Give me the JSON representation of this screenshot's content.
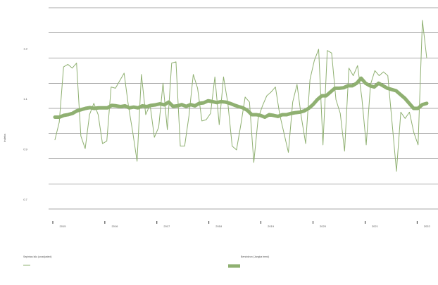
{
  "chart_data": {
    "type": "line",
    "title": "",
    "xlabel": "",
    "ylabel": "Indeks",
    "grid": true,
    "legend_position": "bottom",
    "footer": "",
    "x_tick_labels": [
      "2015",
      "2016",
      "2017",
      "2018",
      "2019",
      "2020",
      "2021",
      "2022"
    ],
    "y_tick_labels": [
      "0.7",
      "0.9",
      "1.1",
      "1.3"
    ],
    "ylim": [
      0.65,
      1.45
    ],
    "colors": {
      "series_1": "#8fb071",
      "series_2": "#8fb071",
      "grid": "#555555"
    },
    "series": [
      {
        "name": "Sepintas lalu (unadjusted)",
        "style": "thin",
        "values": [
          0.925,
          0.995,
          1.215,
          1.225,
          1.21,
          1.23,
          0.94,
          0.89,
          1.025,
          1.07,
          1.025,
          0.91,
          0.92,
          1.135,
          1.13,
          1.16,
          1.19,
          1.06,
          0.955,
          0.84,
          1.185,
          1.025,
          1.065,
          0.935,
          0.975,
          1.15,
          0.965,
          1.23,
          1.235,
          0.9,
          0.9,
          1.02,
          1.185,
          1.13,
          1.0,
          1.005,
          1.03,
          1.175,
          0.985,
          1.175,
          1.07,
          0.9,
          0.885,
          0.985,
          1.095,
          1.075,
          0.835,
          1.01,
          1.06,
          1.1,
          1.115,
          1.135,
          1.025,
          0.95,
          0.875,
          1.075,
          1.145,
          1.015,
          0.91,
          1.165,
          1.24,
          1.285,
          0.905,
          1.28,
          1.27,
          1.085,
          1.03,
          0.88,
          1.21,
          1.18,
          1.22,
          1.09,
          0.905,
          1.145,
          1.2,
          1.18,
          1.195,
          1.18,
          0.99,
          0.8,
          1.035,
          1.01,
          1.035,
          0.955,
          0.905,
          1.4,
          1.25
        ]
      },
      {
        "name": "Bersinkron (Jangka trend)",
        "style": "thick",
        "values": [
          1.015,
          1.015,
          1.022,
          1.025,
          1.03,
          1.04,
          1.045,
          1.05,
          1.053,
          1.05,
          1.052,
          1.052,
          1.052,
          1.062,
          1.06,
          1.057,
          1.06,
          1.052,
          1.055,
          1.052,
          1.06,
          1.057,
          1.062,
          1.064,
          1.068,
          1.064,
          1.075,
          1.058,
          1.06,
          1.065,
          1.058,
          1.065,
          1.06,
          1.07,
          1.072,
          1.08,
          1.077,
          1.073,
          1.077,
          1.075,
          1.07,
          1.063,
          1.057,
          1.052,
          1.042,
          1.025,
          1.025,
          1.022,
          1.015,
          1.025,
          1.022,
          1.018,
          1.025,
          1.025,
          1.03,
          1.033,
          1.035,
          1.04,
          1.05,
          1.065,
          1.085,
          1.1,
          1.1,
          1.115,
          1.13,
          1.13,
          1.132,
          1.14,
          1.14,
          1.15,
          1.17,
          1.15,
          1.14,
          1.135,
          1.15,
          1.14,
          1.13,
          1.125,
          1.12,
          1.105,
          1.09,
          1.07,
          1.05,
          1.05,
          1.065,
          1.07
        ]
      }
    ]
  }
}
